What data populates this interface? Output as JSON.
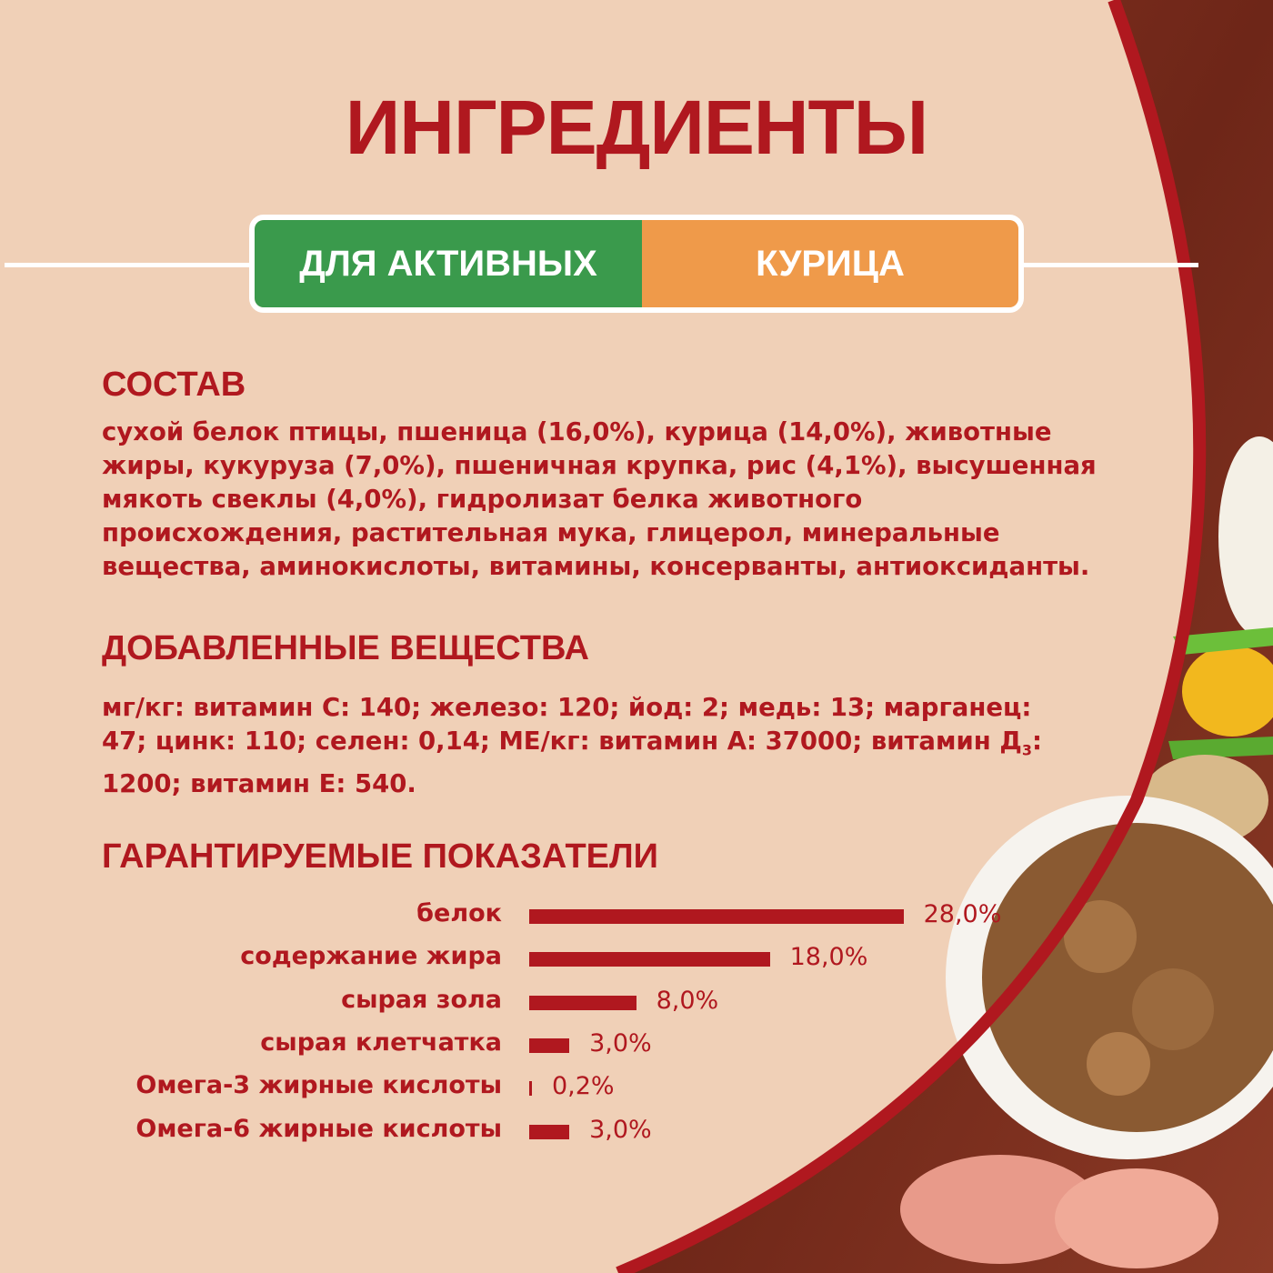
{
  "title": "ИНГРЕДИЕНТЫ",
  "badges": {
    "left": "ДЛЯ АКТИВНЫХ",
    "right": "КУРИЦА"
  },
  "colors": {
    "accent": "#b0181f",
    "background": "#f0d0b7",
    "badge_left": "#3a9a4c",
    "badge_right": "#ef9a4a"
  },
  "composition": {
    "heading": "СОСТАВ",
    "text": "сухой белок птицы, пшеница (16,0%), курица (14,0%), животные жиры, кукуруза (7,0%), пшеничная крупка, рис (4,1%), высушенная мякоть свеклы (4,0%), гидролизат белка животного происхождения, растительная  мука, глицерол, минеральные вещества, аминокислоты, витамины, консерванты, антиоксиданты."
  },
  "additives": {
    "heading": "ДОБАВЛЕННЫЕ ВЕЩЕСТВА",
    "text_part1": "мг/кг: витамин С: 140; железо: 120; йод: 2; медь: 13; марганец: 47; цинк: 110; селен: 0,14; МЕ/кг: витамин А: 37000; витамин Д",
    "subscript": "3",
    "text_part2": ": 1200; витамин Е: 540."
  },
  "guaranteed": {
    "heading": "ГАРАНТИРУЕМЫЕ ПОКАЗАТЕЛИ"
  },
  "chart_data": {
    "type": "bar",
    "orientation": "horizontal",
    "categories": [
      "белок",
      "содержание жира",
      "сырая зола",
      "сырая клетчатка",
      "Омега-3 жирные кислоты",
      "Омега-6 жирные кислоты"
    ],
    "values": [
      28.0,
      18.0,
      8.0,
      3.0,
      0.2,
      3.0
    ],
    "labels": [
      "28,0%",
      "18,0%",
      "8,0%",
      "3,0%",
      "0,2%",
      "3,0%"
    ],
    "unit": "%",
    "grid": false
  }
}
